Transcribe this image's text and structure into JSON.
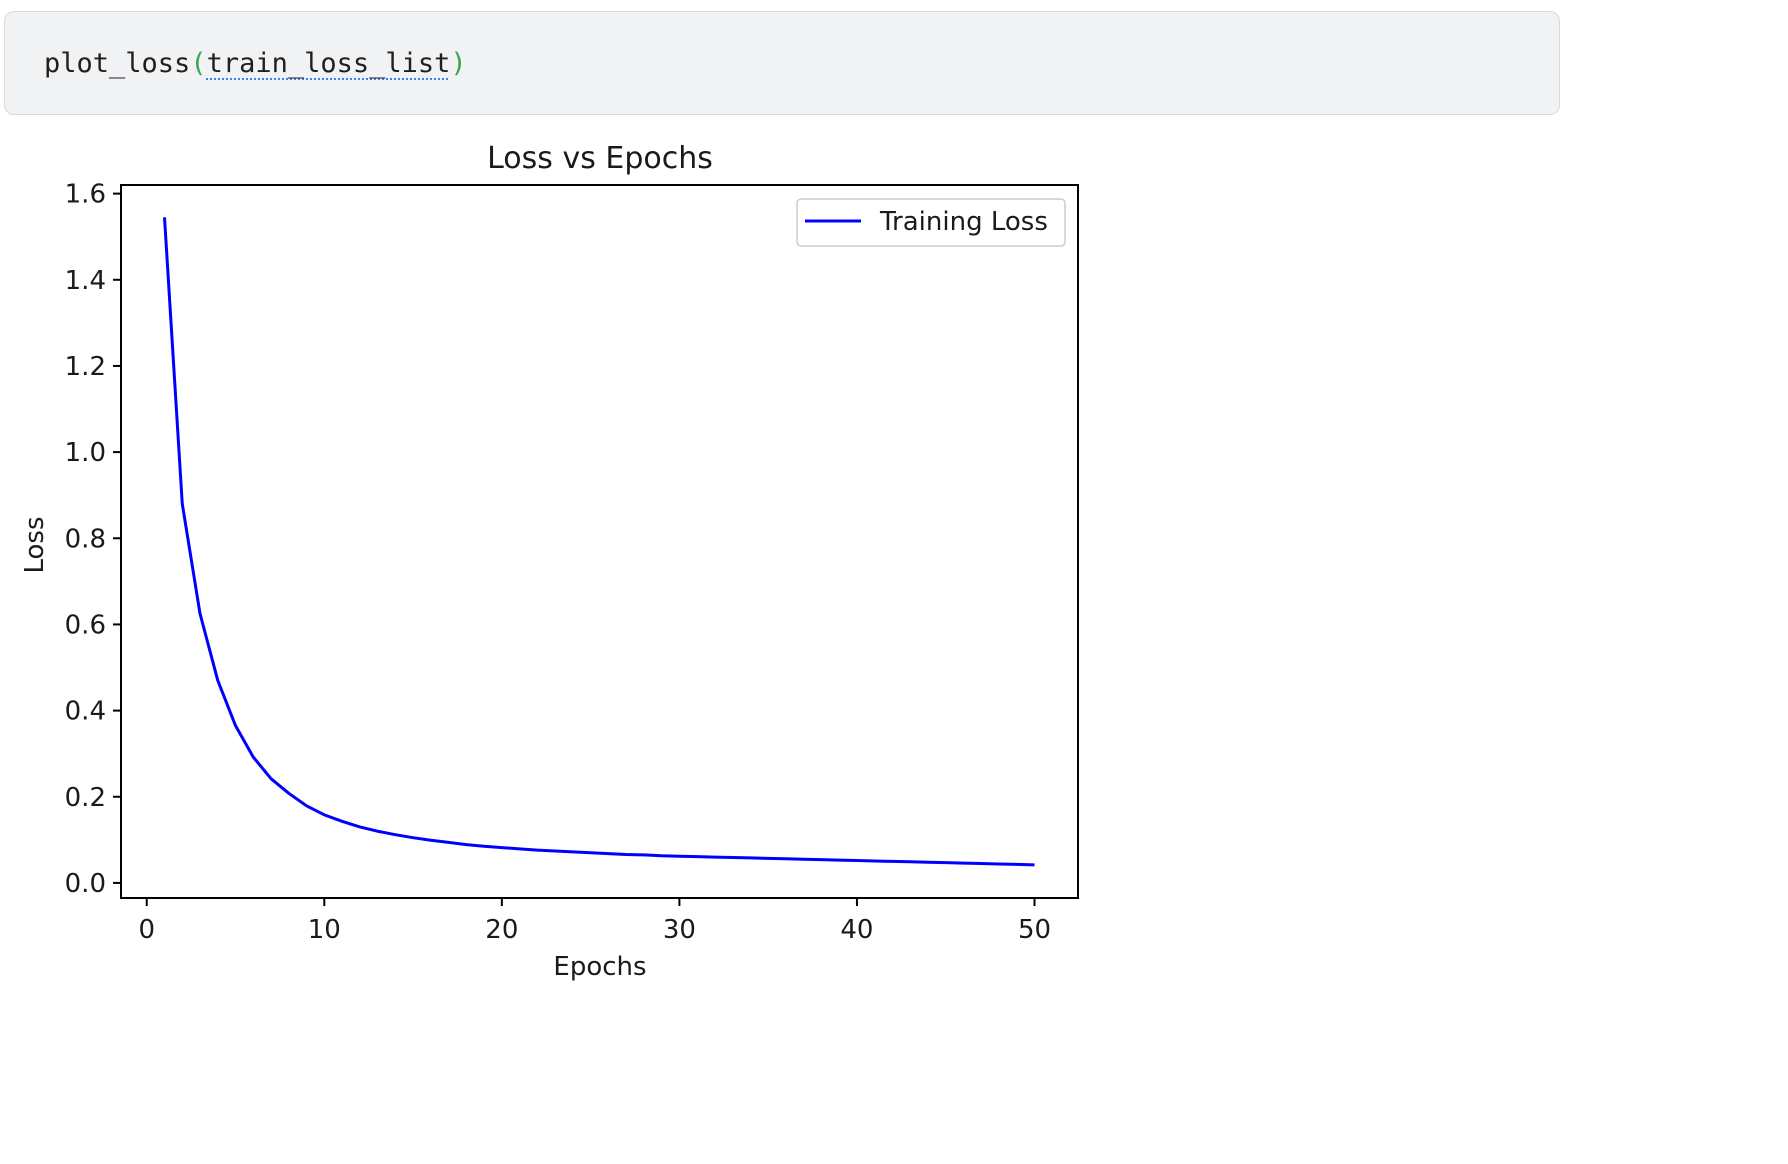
{
  "code_cell": {
    "function": "plot_loss",
    "open_paren": "(",
    "argument": "train_loss_list",
    "close_paren": ")"
  },
  "chart_data": {
    "type": "line",
    "title": "Loss vs Epochs",
    "xlabel": "Epochs",
    "ylabel": "Loss",
    "xlim": [
      -1.45,
      52.45
    ],
    "ylim": [
      -0.035,
      1.62
    ],
    "xticks": [
      0,
      10,
      20,
      30,
      40,
      50
    ],
    "yticks": [
      0.0,
      0.2,
      0.4,
      0.6,
      0.8,
      1.0,
      1.2,
      1.4,
      1.6
    ],
    "grid": false,
    "legend_position": "upper right",
    "series": [
      {
        "name": "Training Loss",
        "color": "#0000ff",
        "x": [
          1,
          2,
          3,
          4,
          5,
          6,
          7,
          8,
          9,
          10,
          11,
          12,
          13,
          14,
          15,
          16,
          17,
          18,
          19,
          20,
          21,
          22,
          23,
          24,
          25,
          26,
          27,
          28,
          29,
          30,
          31,
          32,
          33,
          34,
          35,
          36,
          37,
          38,
          39,
          40,
          41,
          42,
          43,
          44,
          45,
          46,
          47,
          48,
          49,
          50
        ],
        "values": [
          1.545,
          0.88,
          0.625,
          0.47,
          0.365,
          0.292,
          0.242,
          0.208,
          0.179,
          0.158,
          0.143,
          0.13,
          0.12,
          0.112,
          0.105,
          0.099,
          0.094,
          0.089,
          0.085,
          0.082,
          0.079,
          0.076,
          0.074,
          0.072,
          0.07,
          0.068,
          0.066,
          0.065,
          0.063,
          0.062,
          0.061,
          0.06,
          0.059,
          0.058,
          0.057,
          0.056,
          0.055,
          0.054,
          0.053,
          0.052,
          0.051,
          0.05,
          0.049,
          0.048,
          0.047,
          0.046,
          0.045,
          0.044,
          0.043,
          0.042
        ]
      }
    ]
  }
}
